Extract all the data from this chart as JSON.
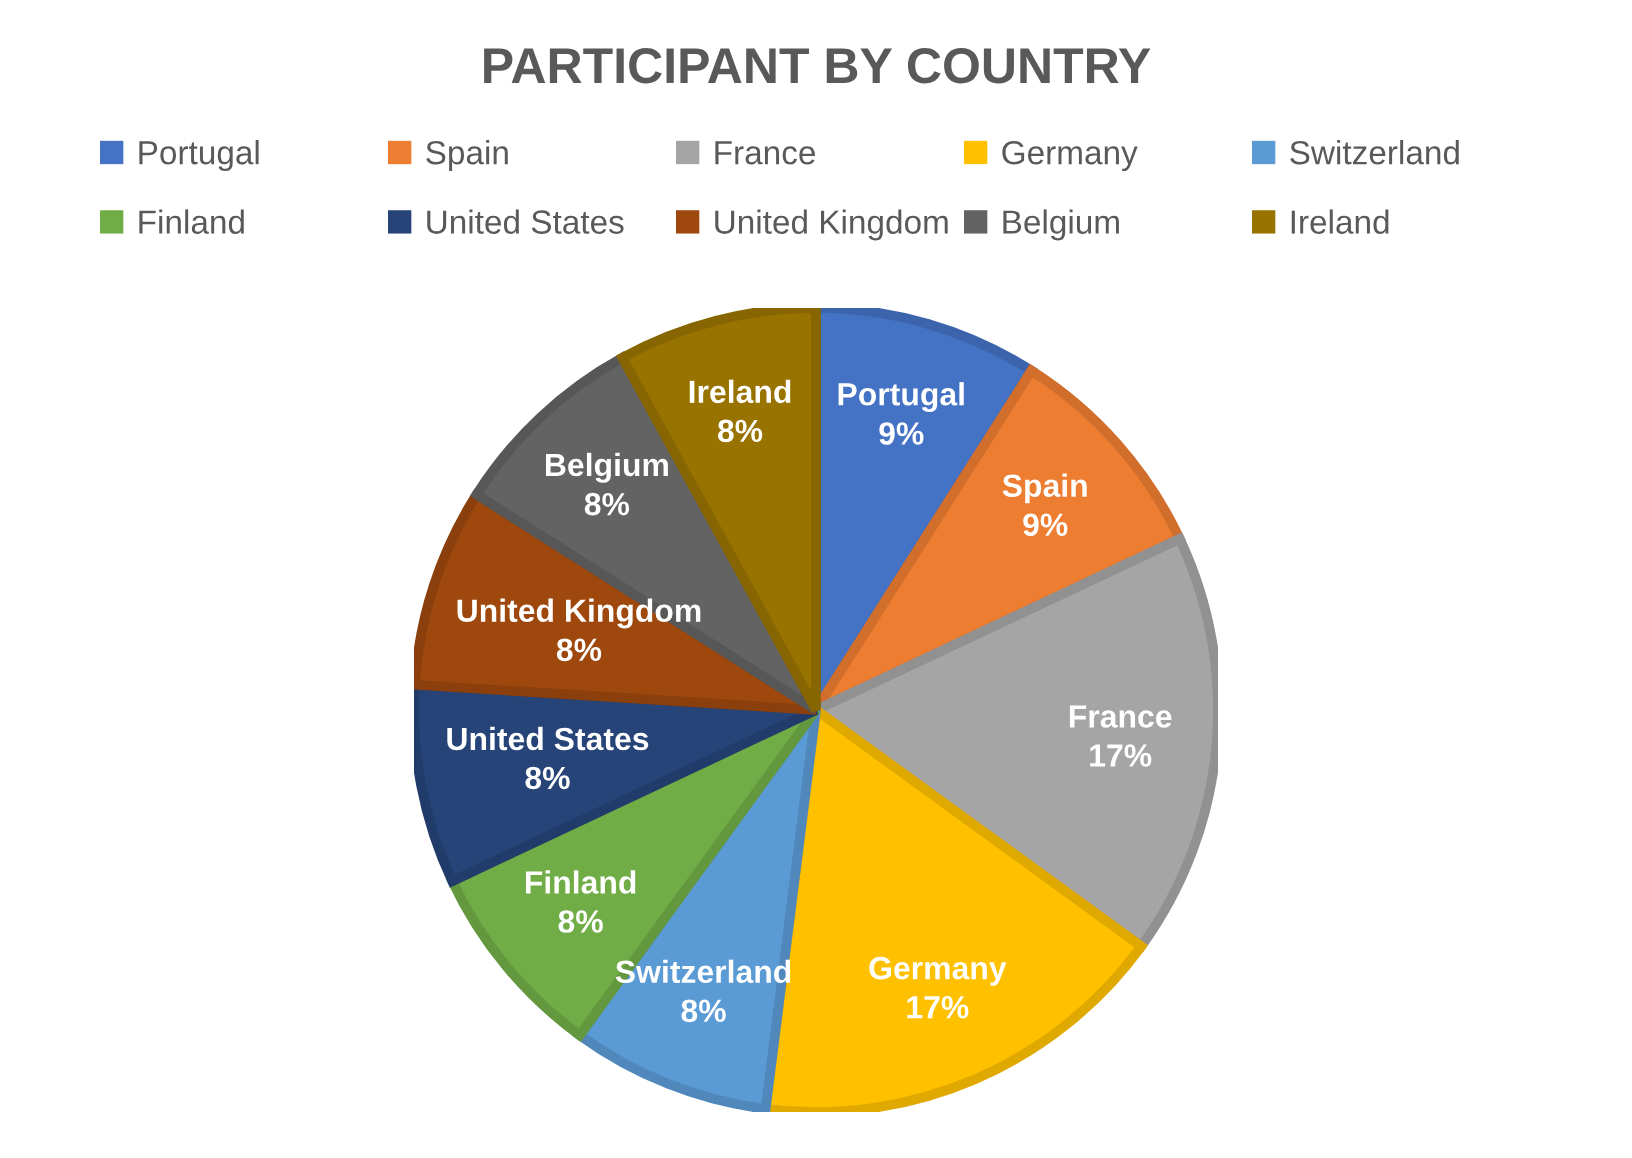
{
  "chart_data": {
    "type": "pie",
    "title": "PARTICIPANT BY COUNTRY",
    "categories": [
      "Portugal",
      "Spain",
      "France",
      "Germany",
      "Switzerland",
      "Finland",
      "United States",
      "United Kingdom",
      "Belgium",
      "Ireland"
    ],
    "values": [
      9,
      9,
      17,
      17,
      8,
      8,
      8,
      8,
      8,
      8
    ],
    "colors": [
      "#4472c4",
      "#ed7d31",
      "#a5a5a5",
      "#ffc000",
      "#5b9bd5",
      "#70ad47",
      "#264478",
      "#9e480e",
      "#636363",
      "#997300"
    ],
    "value_labels": [
      "Portugal\n9%",
      "Spain\n9%",
      "France\n17%",
      "Germany\n17%",
      "Switzerland\n8%",
      "Finland\n8%",
      "United States\n8%",
      "United Kingdom\n8%",
      "Belgium\n8%",
      "Ireland\n8%"
    ],
    "legend": "top"
  }
}
